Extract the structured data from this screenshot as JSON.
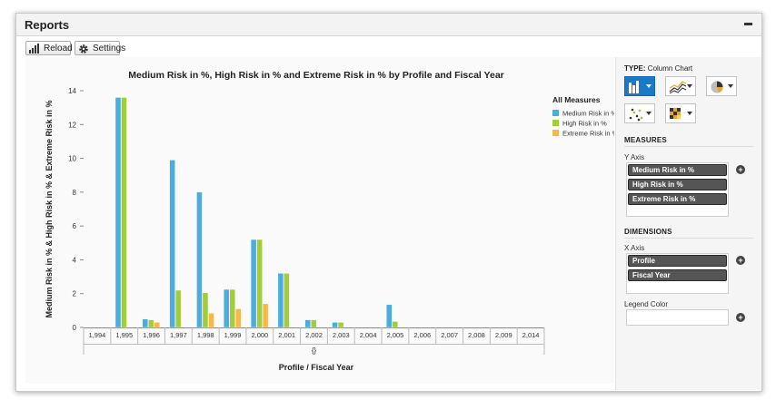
{
  "window": {
    "title": "Reports"
  },
  "toolbar": {
    "reload_label": "Reload",
    "settings_label": "Settings"
  },
  "chart_data": {
    "type": "bar",
    "title": "Medium Risk in %, High Risk in % and Extreme Risk in % by Profile and Fiscal Year",
    "xlabel": "Profile / Fiscal Year",
    "ylabel": "Medium Risk in % & High Risk in % & Extreme Risk in %",
    "ylim": [
      0,
      14
    ],
    "yticks": [
      0,
      2,
      4,
      6,
      8,
      10,
      12,
      14
    ],
    "group_label": "{}",
    "legend": {
      "title": "All Measures",
      "placement": "top-right"
    },
    "categories": [
      "1,994",
      "1,995",
      "1,996",
      "1,997",
      "1,998",
      "1,999",
      "2,000",
      "2,001",
      "2,002",
      "2,003",
      "2,004",
      "2,005",
      "2,006",
      "2,007",
      "2,008",
      "2,009",
      "2,014"
    ],
    "series": [
      {
        "name": "Medium Risk in %",
        "color": "#4aade0",
        "values": [
          0,
          13.6,
          0.5,
          9.9,
          8.0,
          2.25,
          5.2,
          3.2,
          0.45,
          0.3,
          0,
          1.35,
          0,
          0,
          0,
          0,
          0
        ]
      },
      {
        "name": "High Risk in %",
        "color": "#a2cc3a",
        "values": [
          0,
          13.6,
          0.45,
          2.2,
          2.05,
          2.25,
          5.2,
          3.2,
          0.45,
          0.3,
          0,
          0.35,
          0,
          0,
          0,
          0,
          0
        ]
      },
      {
        "name": "Extreme Risk in %",
        "color": "#f6b74c",
        "values": [
          0,
          0,
          0.3,
          0,
          0.85,
          1.1,
          1.4,
          0,
          0,
          0,
          0,
          0,
          0,
          0,
          0,
          0,
          0
        ]
      }
    ]
  },
  "sidebar": {
    "type_label": "TYPE:",
    "type_value": "Column Chart",
    "chart_types": [
      {
        "icon": "column-chart-icon",
        "selected": true
      },
      {
        "icon": "line-chart-icon",
        "selected": false
      },
      {
        "icon": "pie-chart-icon",
        "selected": false
      },
      {
        "icon": "scatter-chart-icon",
        "selected": false
      },
      {
        "icon": "heatmap-chart-icon",
        "selected": false
      }
    ],
    "measures_title": "MEASURES",
    "y_axis_label": "Y Axis",
    "measures": [
      "Medium Risk in %",
      "High Risk in %",
      "Extreme Risk in %"
    ],
    "dimensions_title": "DIMENSIONS",
    "x_axis_label": "X Axis",
    "dimensions": [
      "Profile",
      "Fiscal Year"
    ],
    "legend_color_label": "Legend Color"
  }
}
